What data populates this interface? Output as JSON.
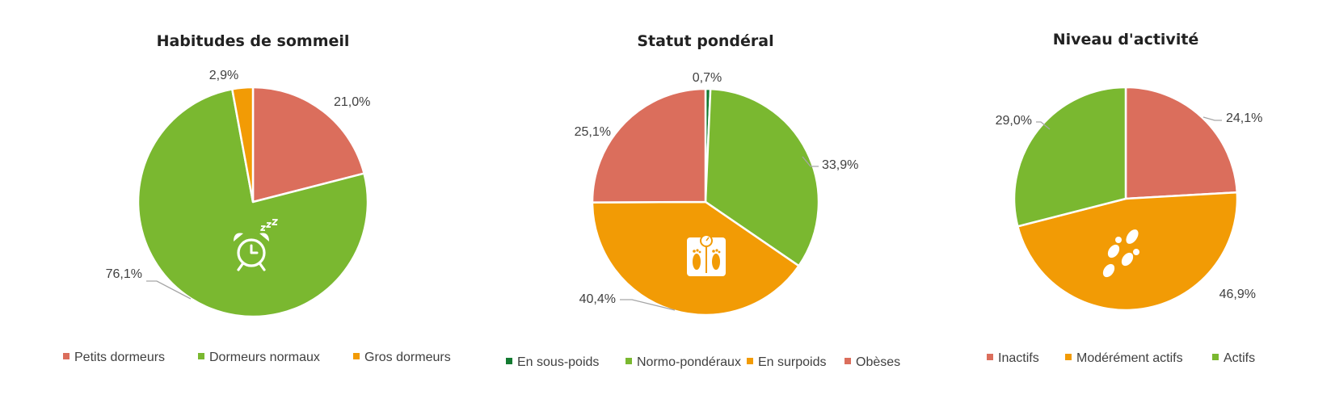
{
  "colors": {
    "red": "#DB6E5C",
    "green": "#7AB830",
    "orange": "#F29B05",
    "darkgreen": "#137A31",
    "icon": "#ffffff",
    "leader": "#A6A6A6"
  },
  "chart_data": [
    {
      "type": "pie",
      "title": "Habitudes de sommeil",
      "icon": "alarm-clock-sleep-icon",
      "categories": [
        "Petits dormeurs",
        "Dormeurs normaux",
        "Gros dormeurs"
      ],
      "values": [
        21.0,
        76.1,
        2.9
      ],
      "labels": [
        "21,0%",
        "76,1%",
        "2,9%"
      ],
      "colors": [
        "#DB6E5C",
        "#7AB830",
        "#F29B05"
      ],
      "legend_position": "bottom"
    },
    {
      "type": "pie",
      "title": "Statut pondéral",
      "icon": "bathroom-scale-icon",
      "categories": [
        "En sous-poids",
        "Normo-pondéraux",
        "En surpoids",
        "Obèses"
      ],
      "values": [
        0.7,
        33.9,
        40.4,
        25.1
      ],
      "labels": [
        "0,7%",
        "33,9%",
        "40,4%",
        "25,1%"
      ],
      "colors": [
        "#137A31",
        "#7AB830",
        "#F29B05",
        "#DB6E5C"
      ],
      "legend_position": "bottom"
    },
    {
      "type": "pie",
      "title": "Niveau d'activité",
      "icon": "footprints-icon",
      "categories": [
        "Inactifs",
        "Modérément actifs",
        "Actifs"
      ],
      "values": [
        24.1,
        46.9,
        29.0
      ],
      "labels": [
        "24,1%",
        "46,9%",
        "29,0%"
      ],
      "colors": [
        "#DB6E5C",
        "#F29B05",
        "#7AB830"
      ],
      "legend_position": "bottom"
    }
  ]
}
